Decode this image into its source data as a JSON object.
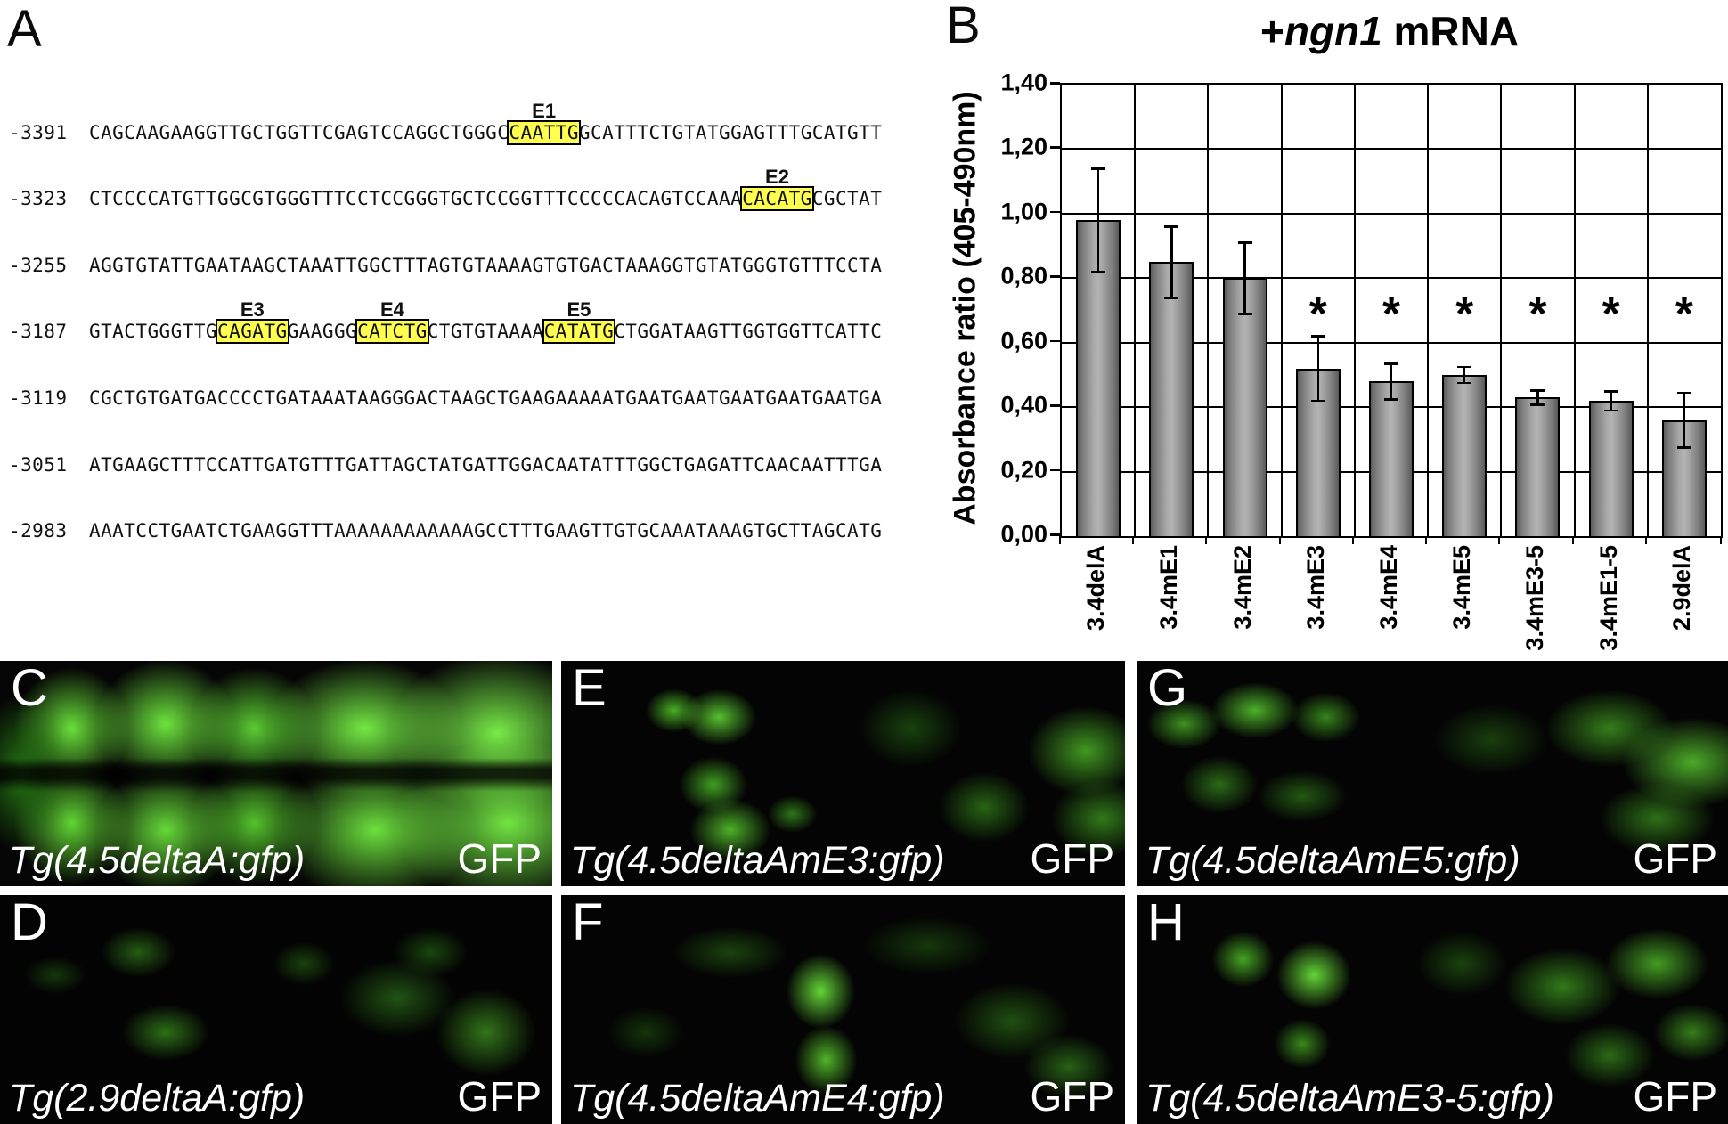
{
  "figure": {
    "panel_a": {
      "letter": "A",
      "rows": [
        {
          "position": "-3391",
          "segments": [
            {
              "text": "CAGCAAGAAGGTTGCTGGTTCGAGTCCAGGCTGGGC"
            },
            {
              "text": "CAATTG",
              "box": "E1"
            },
            {
              "text": "GCATTTCTGTATGGAGTTTGCATGTT"
            }
          ]
        },
        {
          "position": "-3323",
          "segments": [
            {
              "text": "CTCCCCATGTTGGCGTGGGTTTCCTCCGGGTGCTCCGGTTTCCCCCACAGTCCAAA"
            },
            {
              "text": "CACATG",
              "box": "E2"
            },
            {
              "text": "CGCTAT"
            }
          ]
        },
        {
          "position": "-3255",
          "segments": [
            {
              "text": "AGGTGTATTGAATAAGCTAAATTGGCTTTAGTGTAAAAGTGTGACTAAAGGTGTATGGGTGTTTCCTA"
            }
          ]
        },
        {
          "position": "-3187",
          "segments": [
            {
              "text": "GTACTGGGTTG"
            },
            {
              "text": "CAGATG",
              "box": "E3"
            },
            {
              "text": "GAAGGG"
            },
            {
              "text": "CATCTG",
              "box": "E4"
            },
            {
              "text": "CTGTGTAAAA"
            },
            {
              "text": "CATATG",
              "box": "E5"
            },
            {
              "text": "CTGGATAAGTTGGTGGTTCATTC"
            }
          ]
        },
        {
          "position": "-3119",
          "segments": [
            {
              "text": "CGCTGTGATGACCCCTGATAAATAAGGGACTAAGCTGAAGAAAAATGAATGAATGAATGAATGAATGA"
            }
          ]
        },
        {
          "position": "-3051",
          "segments": [
            {
              "text": "ATGAAGCTTTCCATTGATGTTTGATTAGCTATGATTGGACAATATTTGGCTGAGATTCAACAATTTGA"
            }
          ]
        },
        {
          "position": "-2983",
          "segments": [
            {
              "text": "AAATCCTGAATCTGAAGGTTTAAAAAAAAAAAAGCCTTTGAAGTTGTGCAAATAAAGTGCTTAGCATG"
            }
          ]
        }
      ]
    },
    "panel_b": {
      "letter": "B"
    },
    "micrographs": [
      {
        "letter": "C",
        "construct": "Tg(4.5deltaA:gfp)",
        "channel": "GFP"
      },
      {
        "letter": "E",
        "construct": "Tg(4.5deltaAmE3:gfp)",
        "channel": "GFP"
      },
      {
        "letter": "G",
        "construct": "Tg(4.5deltaAmE5:gfp)",
        "channel": "GFP"
      },
      {
        "letter": "D",
        "construct": "Tg(2.9deltaA:gfp)",
        "channel": "GFP"
      },
      {
        "letter": "F",
        "construct": "Tg(4.5deltaAmE4:gfp)",
        "channel": "GFP"
      },
      {
        "letter": "H",
        "construct": "Tg(4.5deltaAmE3-5:gfp)",
        "channel": "GFP"
      }
    ]
  },
  "chart_data": {
    "type": "bar",
    "title": "+ngn1 mRNA",
    "title_plus": "+",
    "title_gene": "ngn1",
    "title_rest": " mRNA",
    "ylabel": "Absorbance ratio (405-490nm)",
    "categories": [
      "3.4delA",
      "3.4mE1",
      "3.4mE2",
      "3.4mE3",
      "3.4mE4",
      "3.4mE5",
      "3.4mE3-5",
      "3.4mE1-5",
      "2.9delA"
    ],
    "values": [
      0.98,
      0.85,
      0.8,
      0.52,
      0.48,
      0.5,
      0.43,
      0.42,
      0.36
    ],
    "errors": [
      0.16,
      0.11,
      0.11,
      0.1,
      0.055,
      0.025,
      0.022,
      0.03,
      0.085
    ],
    "significant": [
      false,
      false,
      false,
      true,
      true,
      true,
      true,
      true,
      true
    ],
    "significance_marker": "*",
    "ylim": [
      0,
      1.4
    ],
    "ytick_step": 0.2,
    "ytick_labels": [
      "0,00",
      "0,20",
      "0,40",
      "0,60",
      "0,80",
      "1,00",
      "1,20",
      "1,40"
    ],
    "grid": true,
    "legend": "none",
    "bar_color": "#8f8f8f",
    "highlight_color": "#ffff4f"
  }
}
